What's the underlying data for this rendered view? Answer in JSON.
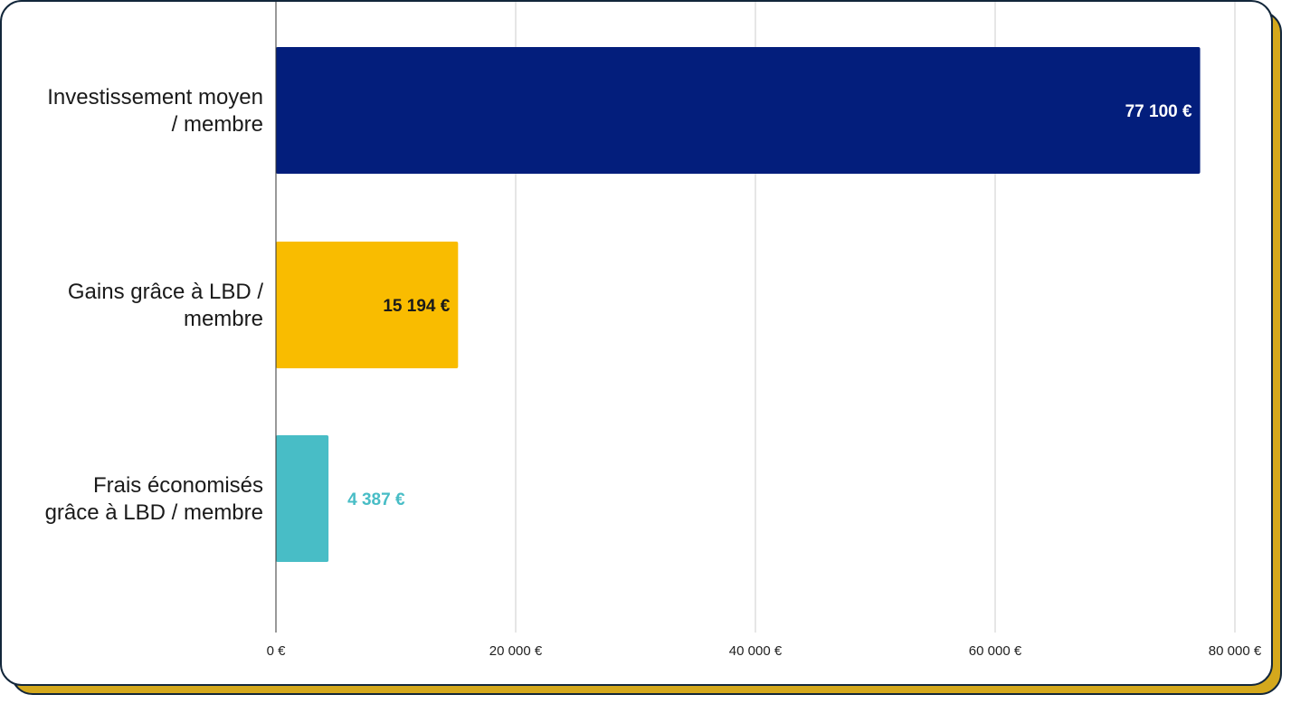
{
  "chart_data": {
    "type": "bar",
    "orientation": "horizontal",
    "categories": [
      [
        "Investissement moyen",
        "/ membre"
      ],
      [
        "Gains grâce à LBD /",
        "membre"
      ],
      [
        "Frais économisés",
        "grâce à LBD / membre"
      ]
    ],
    "values": [
      77100,
      15194,
      4387
    ],
    "value_labels": [
      "77 100 €",
      "15 194 €",
      "4 387 €"
    ],
    "colors": [
      "#031e7c",
      "#f9bc00",
      "#48bdc6"
    ],
    "label_colors": [
      "#ffffff",
      "#1a1a1a",
      "#48bdc6"
    ],
    "label_positions": [
      "inside-end",
      "inside-end",
      "outside-end"
    ],
    "xlim": [
      0,
      80000
    ],
    "xticks": [
      0,
      20000,
      40000,
      60000,
      80000
    ],
    "xtick_labels": [
      "0 €",
      "20 000 €",
      "40 000 €",
      "60 000 €",
      "80 000 €"
    ],
    "grid": true,
    "title": "",
    "xlabel": "",
    "ylabel": ""
  }
}
